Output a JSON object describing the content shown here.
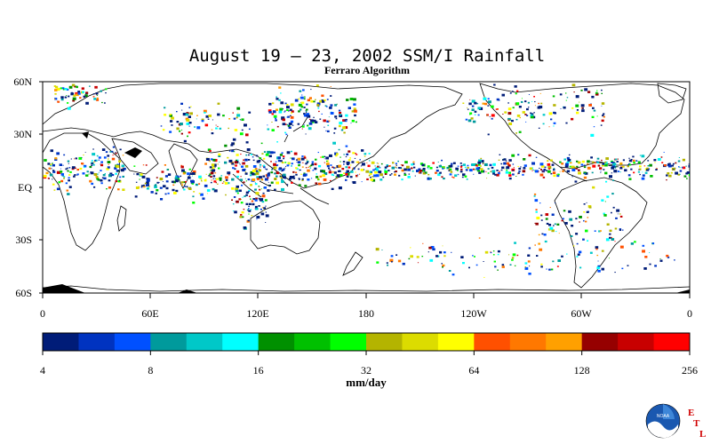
{
  "title": "August 19 – 23, 2002 SSM/I Rainfall",
  "subtitle": "Ferraro Algorithm",
  "lat_labels": [
    "60N",
    "30N",
    "EQ",
    "30S",
    "60S"
  ],
  "lon_labels": [
    "0",
    "60E",
    "120E",
    "180",
    "120W",
    "60W",
    "0"
  ],
  "colorbar": {
    "colors": [
      "#001c78",
      "#0033c0",
      "#0050ff",
      "#009a9c",
      "#00c8c8",
      "#00ffff",
      "#009000",
      "#00c000",
      "#00ff00",
      "#b4b400",
      "#dcdc00",
      "#ffff00",
      "#ff5000",
      "#ff7800",
      "#ffa000",
      "#960000",
      "#c80000",
      "#ff0000"
    ],
    "tick_labels": [
      "4",
      "8",
      "16",
      "32",
      "64",
      "128",
      "256"
    ],
    "units": "mm/day"
  },
  "logo": {
    "org_text": "NOAA",
    "side_letters": [
      "E",
      "T",
      "L"
    ]
  }
}
